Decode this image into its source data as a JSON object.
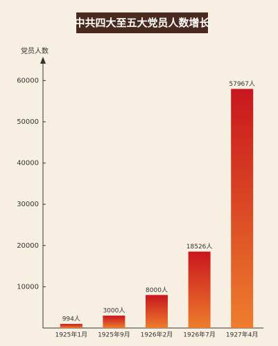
{
  "chart_data": {
    "type": "bar",
    "title": "中共四大至五大党员人数增长",
    "y_label": "党员人数",
    "categories": [
      "1925年1月",
      "1925年9月",
      "1926年2月",
      "1926年7月",
      "1927年4月"
    ],
    "values": [
      994,
      3000,
      8000,
      18526,
      57967
    ],
    "value_labels": [
      "994人",
      "3000人",
      "8000人",
      "18526人",
      "57967人"
    ],
    "color": "#c8161d",
    "ylim": [
      0,
      65000
    ],
    "yticks": [
      10000,
      20000,
      30000,
      40000,
      50000,
      60000
    ],
    "grid": false
  }
}
